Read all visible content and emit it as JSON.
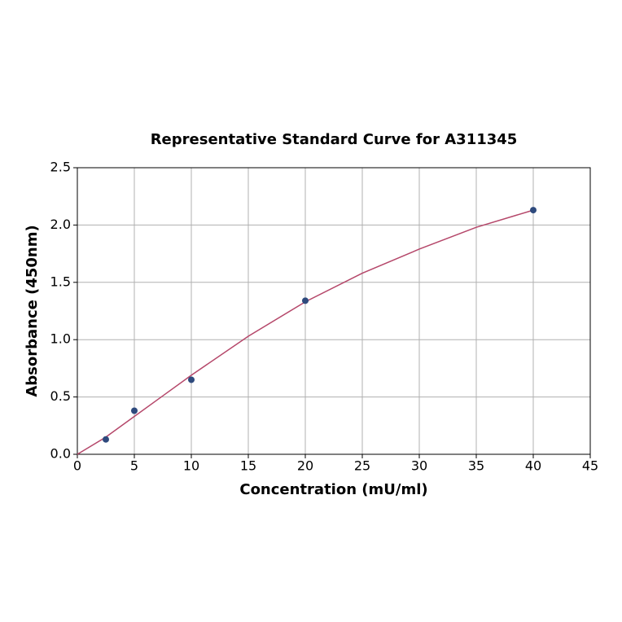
{
  "chart_data": {
    "type": "scatter",
    "title": "Representative Standard Curve for A311345",
    "x_label": "Concentration (mU/ml)",
    "y_label": "Absorbance (450nm)",
    "series": [
      {
        "mode": "markers",
        "color": "#2e4a7d",
        "x": [
          2.5,
          5,
          10,
          20,
          40
        ],
        "values": [
          0.13,
          0.38,
          0.65,
          1.34,
          2.13
        ]
      },
      {
        "mode": "line",
        "color": "#b5476a",
        "x": [
          0,
          2.5,
          5,
          7.5,
          10,
          15,
          20,
          25,
          30,
          35,
          40
        ],
        "values": [
          0.0,
          0.15,
          0.33,
          0.51,
          0.69,
          1.03,
          1.33,
          1.58,
          1.79,
          1.98,
          2.13
        ]
      }
    ],
    "xlim": [
      0,
      45
    ],
    "xticks": [
      0,
      5,
      10,
      15,
      20,
      25,
      30,
      35,
      40,
      45
    ],
    "ylim": [
      0,
      2.5
    ],
    "yticks": [
      {
        "value": 0,
        "label": "0.0"
      },
      0.5,
      {
        "value": 1,
        "label": "1.0"
      },
      1.5,
      {
        "value": 2,
        "label": "2.0"
      },
      2.5
    ],
    "grid": true
  }
}
